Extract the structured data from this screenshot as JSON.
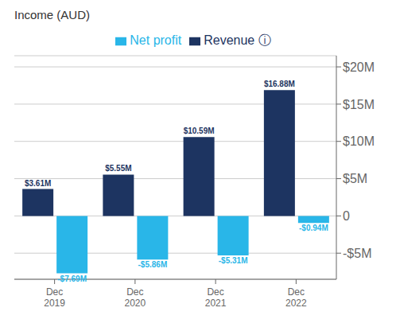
{
  "chart_data": {
    "type": "bar",
    "title": "Income (AUD)",
    "categories": [
      "Dec\n2019",
      "Dec\n2020",
      "Dec\n2021",
      "Dec\n2022"
    ],
    "series": [
      {
        "name": "Revenue ⓘ",
        "color": "#1d3461",
        "values": [
          3.61,
          5.55,
          10.59,
          16.88
        ],
        "value_labels": [
          "$3.61M",
          "$5.55M",
          "$10.59M",
          "$16.88M"
        ]
      },
      {
        "name": "Net profit",
        "color": "#29b6e8",
        "values": [
          -7.69,
          -5.86,
          -5.31,
          -0.94
        ],
        "value_labels": [
          "-$7.69M",
          "-$5.86M",
          "-$5.31M",
          "-$0.94M"
        ]
      }
    ],
    "ylim": [
      -8.5,
      21.5
    ],
    "yticks": [
      {
        "value": -5,
        "label": "-$5M"
      },
      {
        "value": 0,
        "label": "0"
      },
      {
        "value": 5,
        "label": "$5M"
      },
      {
        "value": 10,
        "label": "$10M"
      },
      {
        "value": 15,
        "label": "$15M"
      },
      {
        "value": 20,
        "label": "$20M"
      }
    ],
    "grid": true,
    "data_labels": true,
    "legend": "top"
  }
}
